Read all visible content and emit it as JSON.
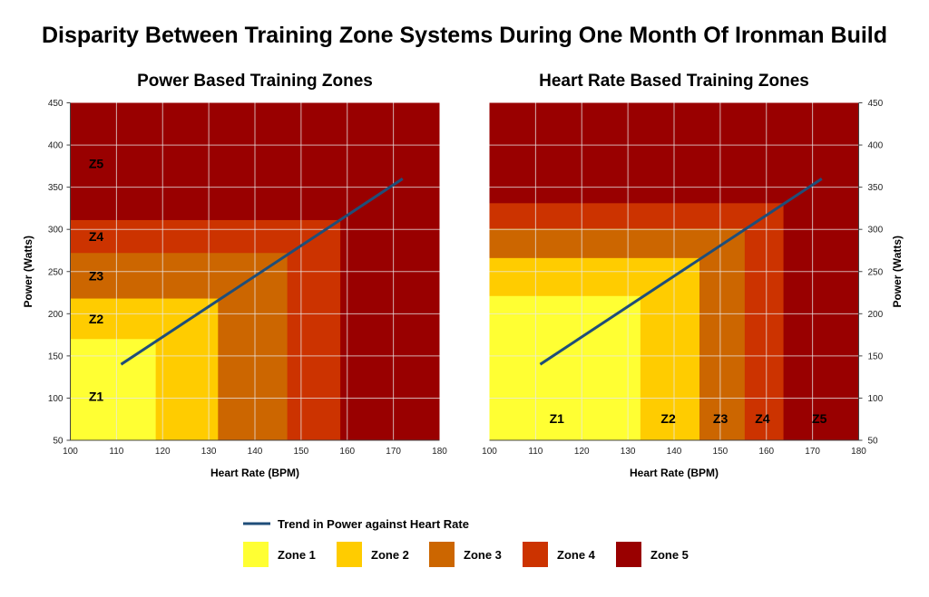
{
  "title": "Disparity Between Training Zone Systems During One Month Of Ironman Build",
  "colors": {
    "zone1": "#ffff33",
    "zone2": "#ffcc00",
    "zone3": "#cc6600",
    "zone4": "#cc3300",
    "zone5": "#990000",
    "trend": "#1f4e79",
    "grid": "#e8e8e8"
  },
  "legend": {
    "placement": "bottom",
    "trend": "Trend in Power against Heart Rate",
    "zones": [
      "Zone 1",
      "Zone 2",
      "Zone 3",
      "Zone 4",
      "Zone 5"
    ]
  },
  "chart_data": [
    {
      "type": "area",
      "title": "Power Based Training Zones",
      "xlabel": "Heart Rate (BPM)",
      "ylabel": "Power (Watts)",
      "y_axis_side": "left",
      "xlim": [
        100,
        180
      ],
      "ylim": [
        50,
        450
      ],
      "xticks": [
        "100",
        "110",
        "120",
        "130",
        "140",
        "150",
        "160",
        "170",
        "180"
      ],
      "yticks": [
        "50",
        "100",
        "150",
        "200",
        "250",
        "300",
        "350",
        "400",
        "450"
      ],
      "grid": true,
      "zones": [
        {
          "label": "Z1",
          "hr_max": 118.5,
          "power_max": 170
        },
        {
          "label": "Z2",
          "hr_max": 132,
          "power_max": 218
        },
        {
          "label": "Z3",
          "hr_max": 147,
          "power_max": 272
        },
        {
          "label": "Z4",
          "hr_max": 158.5,
          "power_max": 311
        },
        {
          "label": "Z5",
          "hr_max": 180,
          "power_max": 450
        }
      ],
      "trend": {
        "name": "Trend in Power against Heart Rate",
        "x": [
          111,
          172
        ],
        "y": [
          140,
          360
        ]
      }
    },
    {
      "type": "area",
      "title": "Heart Rate Based Training Zones",
      "xlabel": "Heart Rate (BPM)",
      "ylabel": "Power (Watts)",
      "y_axis_side": "right",
      "xlim": [
        100,
        180
      ],
      "ylim": [
        50,
        450
      ],
      "xticks": [
        "100",
        "110",
        "120",
        "130",
        "140",
        "150",
        "160",
        "170",
        "180"
      ],
      "yticks": [
        "50",
        "100",
        "150",
        "200",
        "250",
        "300",
        "350",
        "400",
        "450"
      ],
      "grid": true,
      "zones": [
        {
          "label": "Z1",
          "hr_max": 132.7,
          "power_max": 221
        },
        {
          "label": "Z2",
          "hr_max": 145.5,
          "power_max": 266
        },
        {
          "label": "Z3",
          "hr_max": 155.3,
          "power_max": 301
        },
        {
          "label": "Z4",
          "hr_max": 163.7,
          "power_max": 331
        },
        {
          "label": "Z5",
          "hr_max": 180,
          "power_max": 450
        }
      ],
      "trend": {
        "name": "Trend in Power against Heart Rate",
        "x": [
          111,
          172
        ],
        "y": [
          140,
          360
        ]
      }
    }
  ]
}
